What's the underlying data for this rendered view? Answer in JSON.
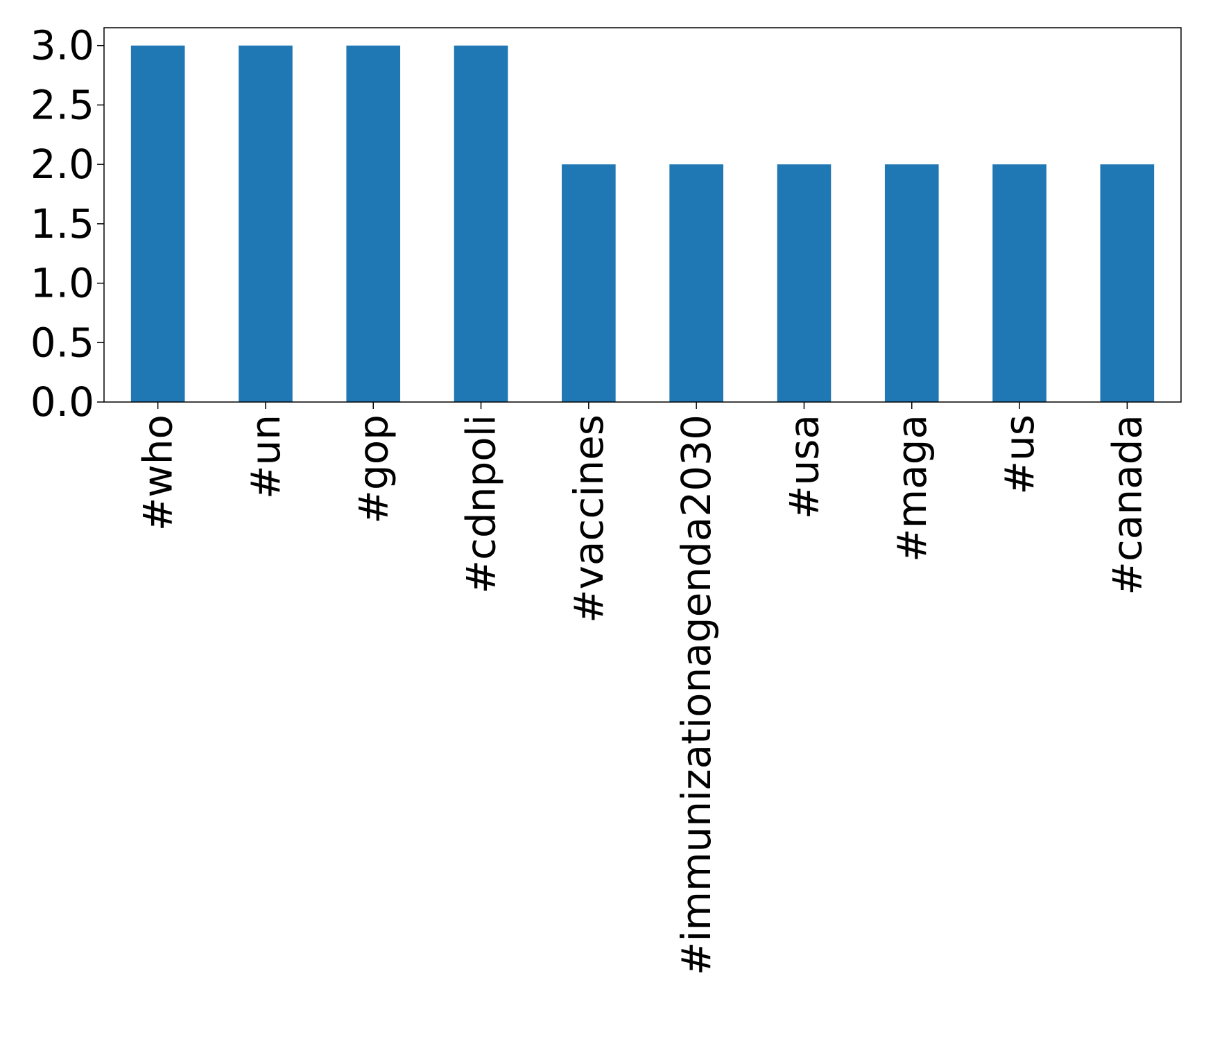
{
  "chart_data": {
    "type": "bar",
    "categories": [
      "#who",
      "#un",
      "#gop",
      "#cdnpoli",
      "#vaccines",
      "#immunizationagenda2030",
      "#usa",
      "#maga",
      "#us",
      "#canada"
    ],
    "values": [
      3,
      3,
      3,
      3,
      2,
      2,
      2,
      2,
      2,
      2
    ],
    "ylim": [
      0,
      3.15
    ],
    "yticks": [
      "0.0",
      "0.5",
      "1.0",
      "1.5",
      "2.0",
      "2.5",
      "3.0"
    ],
    "bar_color": "#1f77b4",
    "grid": false,
    "legend": "none"
  }
}
